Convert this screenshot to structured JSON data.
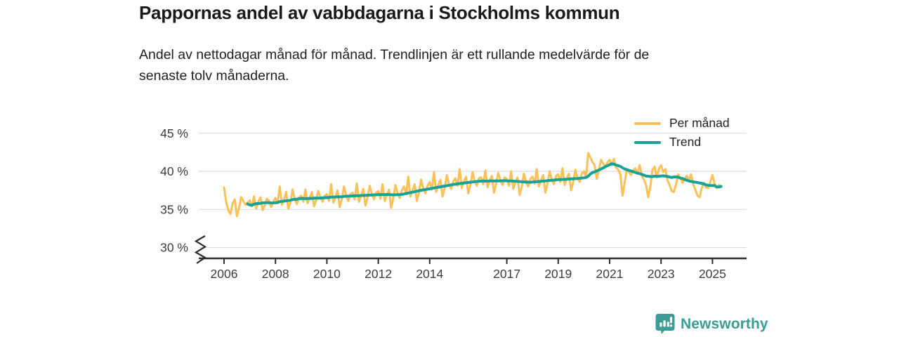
{
  "title": "Pappornas andel av vabbdagarna i Stockholms kommun",
  "subtitle_lines": [
    "Andel av nettodagar månad för månad. Trendlinjen är ett rullande medelvärde för de",
    "senaste tolv månaderna."
  ],
  "legend": {
    "per_month_label": "Per månad",
    "trend_label": "Trend"
  },
  "branding": {
    "name": "Newsworthy",
    "icon": "newsworthy-speech-bubble-bar-chart-icon"
  },
  "colors": {
    "per_month": "#F9C158",
    "trend": "#16A296",
    "brand": "#3B9D95",
    "grid": "#DBDBDB",
    "axis": "#2E2E2E",
    "tick_label": "#3D3D3D"
  },
  "chart_data": {
    "type": "line",
    "title": "Pappornas andel av vabbdagarna i Stockholms kommun",
    "unit": "%",
    "x_start": {
      "year": 2006,
      "month": 1
    },
    "x_end": {
      "year": 2025,
      "month": 5
    },
    "x_tick_years": [
      2006,
      2008,
      2010,
      2012,
      2014,
      2017,
      2019,
      2021,
      2023,
      2025
    ],
    "y_ticks": [
      30,
      35,
      40,
      45
    ],
    "y_tick_format": "{v} %",
    "y_axis_break_at_bottom": true,
    "ylim": [
      30,
      46
    ],
    "grid": true,
    "legend_position": "top-right",
    "series": [
      {
        "name": "Per månad",
        "frequency": "monthly",
        "monthly_values": [
          37.9,
          35.9,
          34.9,
          34.4,
          35.8,
          36.3,
          34.1,
          35.2,
          36.6,
          36.1,
          35.6,
          35.9,
          36.2,
          35.4,
          36.7,
          35.1,
          36.0,
          36.6,
          34.9,
          35.5,
          36.4,
          36.1,
          35.3,
          36.0,
          36.5,
          35.8,
          38.0,
          35.6,
          36.3,
          37.3,
          35.1,
          35.9,
          37.6,
          36.4,
          35.7,
          36.6,
          36.8,
          36.0,
          37.6,
          35.8,
          36.5,
          37.3,
          35.4,
          36.2,
          37.4,
          36.6,
          36.0,
          36.8,
          37.0,
          36.1,
          38.3,
          35.9,
          36.6,
          37.5,
          35.3,
          36.4,
          38.0,
          36.8,
          36.1,
          37.0,
          37.2,
          36.3,
          38.4,
          36.0,
          36.8,
          37.7,
          35.5,
          36.6,
          38.1,
          37.0,
          36.3,
          37.2,
          37.4,
          36.4,
          38.3,
          36.1,
          36.9,
          37.6,
          35.2,
          36.5,
          38.2,
          37.1,
          36.5,
          37.5,
          38.0,
          37.0,
          39.3,
          36.7,
          37.5,
          38.3,
          36.1,
          37.2,
          38.9,
          37.7,
          37.1,
          38.1,
          38.6,
          37.6,
          39.9,
          37.3,
          38.2,
          38.9,
          36.7,
          37.8,
          39.5,
          38.3,
          37.7,
          38.7,
          39.1,
          38.1,
          40.3,
          37.8,
          38.7,
          39.3,
          37.1,
          38.2,
          39.9,
          38.7,
          38.1,
          39.1,
          39.2,
          38.3,
          40.1,
          37.9,
          38.8,
          39.4,
          37.2,
          38.3,
          39.8,
          38.8,
          38.2,
          39.2,
          39.0,
          38.1,
          40.0,
          37.7,
          38.6,
          39.2,
          36.9,
          38.0,
          39.7,
          38.6,
          38.0,
          39.0,
          39.3,
          38.4,
          40.3,
          38.0,
          38.9,
          39.5,
          37.2,
          38.4,
          40.0,
          38.9,
          38.3,
          39.4,
          39.6,
          38.6,
          40.4,
          38.2,
          39.1,
          39.7,
          37.5,
          38.6,
          40.2,
          39.1,
          38.6,
          39.7,
          40.0,
          39.2,
          42.4,
          41.8,
          41.2,
          40.8,
          39.0,
          40.2,
          41.5,
          41.0,
          40.6,
          41.2,
          41.5,
          40.8,
          41.6,
          40.5,
          40.2,
          39.6,
          36.8,
          38.5,
          40.3,
          39.9,
          39.5,
          40.1,
          40.4,
          39.7,
          40.8,
          39.4,
          38.9,
          38.2,
          36.6,
          38.0,
          40.2,
          40.6,
          39.2,
          40.3,
          40.8,
          39.9,
          40.3,
          38.8,
          38.2,
          37.4,
          37.3,
          38.3,
          39.6,
          39.2,
          38.5,
          39.0,
          39.4,
          38.7,
          39.6,
          38.3,
          37.6,
          36.8,
          36.6,
          37.8,
          38.5,
          37.9,
          37.8,
          38.6,
          39.5,
          38.4,
          37.8,
          38.2,
          38.1
        ]
      },
      {
        "name": "Trend",
        "derived_from": "Per månad",
        "method": "rolling_mean",
        "window_months": 12
      }
    ]
  }
}
